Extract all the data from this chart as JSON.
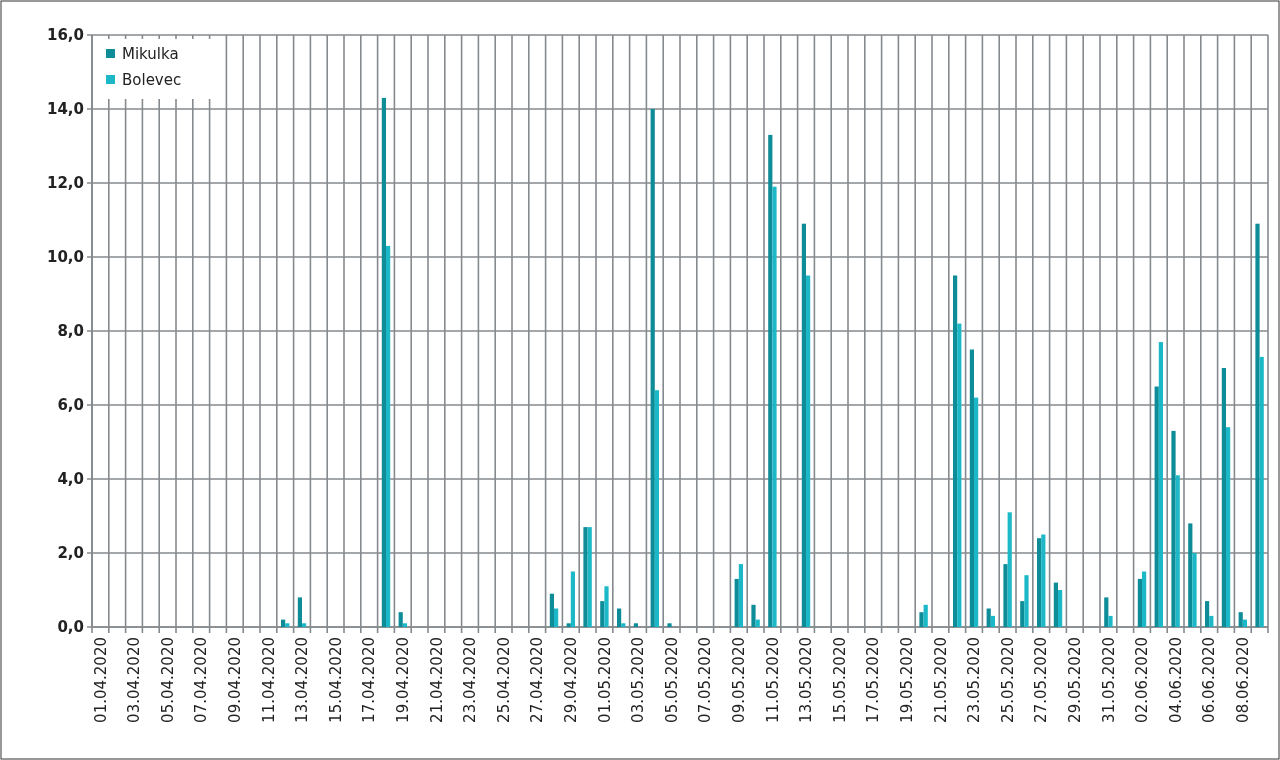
{
  "chart_data": {
    "type": "bar",
    "categories": [
      "01.04.2020",
      null,
      "03.04.2020",
      null,
      "05.04.2020",
      null,
      "07.04.2020",
      null,
      "09.04.2020",
      null,
      "11.04.2020",
      null,
      "13.04.2020",
      null,
      "15.04.2020",
      null,
      "17.04.2020",
      null,
      "19.04.2020",
      null,
      "21.04.2020",
      null,
      "23.04.2020",
      null,
      "25.04.2020",
      null,
      "27.04.2020",
      null,
      "29.04.2020",
      null,
      "01.05.2020",
      null,
      "03.05.2020",
      null,
      "05.05.2020",
      null,
      "07.05.2020",
      null,
      "09.05.2020",
      null,
      "11.05.2020",
      null,
      "13.05.2020",
      null,
      "15.05.2020",
      null,
      "17.05.2020",
      null,
      "19.05.2020",
      null,
      "21.05.2020",
      null,
      "23.05.2020",
      null,
      "25.05.2020",
      null,
      "27.05.2020",
      null,
      "29.05.2020",
      null,
      "31.05.2020",
      null,
      "02.06.2020",
      null,
      "04.06.2020",
      null,
      "06.06.2020",
      null,
      "08.06.2020",
      null
    ],
    "series": [
      {
        "name": "Mikulka",
        "color": "#0e8c98",
        "values": [
          0,
          0,
          0,
          0,
          0,
          0,
          0,
          0,
          0,
          0,
          0,
          0.2,
          0.8,
          0,
          0,
          0,
          0,
          14.3,
          0.4,
          0,
          0,
          0,
          0,
          0,
          0,
          0,
          0,
          0.9,
          0.1,
          2.7,
          0.7,
          0.5,
          0.1,
          14.0,
          0.1,
          0,
          0,
          0,
          1.3,
          0.6,
          13.3,
          0,
          10.9,
          0,
          0,
          0,
          0,
          0,
          0,
          0.4,
          0,
          9.5,
          7.5,
          0.5,
          1.7,
          0.7,
          2.4,
          1.2,
          0,
          0,
          0.8,
          0,
          1.3,
          6.5,
          5.3,
          2.8,
          0.7,
          7.0,
          0.4,
          10.9
        ]
      },
      {
        "name": "Bolevec",
        "color": "#1cb8c8",
        "values": [
          0,
          0,
          0,
          0,
          0,
          0,
          0,
          0,
          0,
          0,
          0,
          0.1,
          0.1,
          0,
          0,
          0,
          0,
          10.3,
          0.1,
          0,
          0,
          0,
          0,
          0,
          0,
          0,
          0,
          0.5,
          1.5,
          2.7,
          1.1,
          0.1,
          0,
          6.4,
          0,
          0,
          0,
          0,
          1.7,
          0.2,
          11.9,
          0,
          9.5,
          0,
          0,
          0,
          0,
          0,
          0,
          0.6,
          0,
          8.2,
          6.2,
          0.3,
          3.1,
          1.4,
          2.5,
          1.0,
          0,
          0,
          0.3,
          0,
          1.5,
          7.7,
          4.1,
          2.0,
          0.3,
          5.4,
          0.2,
          7.3
        ]
      }
    ],
    "ylim": [
      0,
      16
    ],
    "yticks": [
      {
        "value": 0,
        "label": "0,0"
      },
      {
        "value": 2,
        "label": "2,0"
      },
      {
        "value": 4,
        "label": "4,0"
      },
      {
        "value": 6,
        "label": "6,0"
      },
      {
        "value": 8,
        "label": "8,0"
      },
      {
        "value": 10,
        "label": "10,0"
      },
      {
        "value": 12,
        "label": "12,0"
      },
      {
        "value": 14,
        "label": "14,0"
      },
      {
        "value": 16,
        "label": "16,0"
      }
    ],
    "grid": true,
    "legend": "top left"
  }
}
